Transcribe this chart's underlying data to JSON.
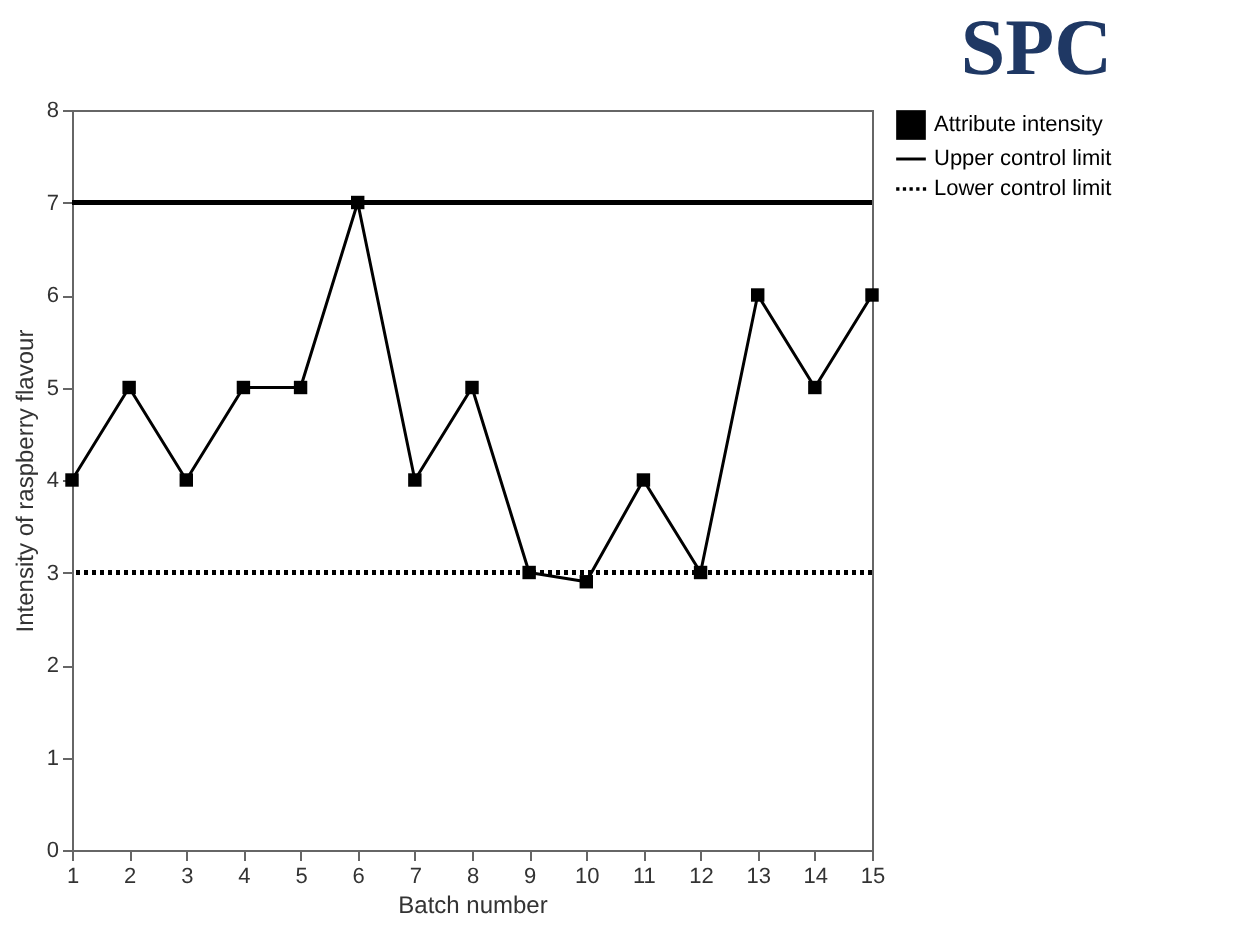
{
  "chart_data": {
    "type": "line",
    "title": "SPC",
    "xlabel": "Batch number",
    "ylabel": "Intensity of raspberry flavour",
    "x": [
      1,
      2,
      3,
      4,
      5,
      6,
      7,
      8,
      9,
      10,
      11,
      12,
      13,
      14,
      15
    ],
    "series": [
      {
        "name": "Attribute intensity",
        "color": "#000000",
        "values": [
          4,
          5,
          4,
          5,
          5,
          7,
          4,
          5,
          3,
          2.9,
          4,
          3,
          6,
          5,
          6
        ]
      }
    ],
    "xlim": [
      1,
      15
    ],
    "xticks": [
      1,
      2,
      3,
      4,
      5,
      6,
      7,
      8,
      9,
      10,
      11,
      12,
      13,
      14,
      15
    ],
    "ylim": [
      0,
      8
    ],
    "yticks": [
      0,
      1,
      2,
      3,
      4,
      5,
      6,
      7,
      8
    ],
    "ref_lines": [
      {
        "axis": "y",
        "value": 7,
        "label": "Upper control limit",
        "color": "#000000",
        "line_style": "solid"
      },
      {
        "axis": "y",
        "value": 3,
        "label": "Lower control limit",
        "color": "#000000",
        "line_style": "dotted"
      }
    ],
    "marker": "square",
    "line_style": "solid",
    "grid": false,
    "legend": "right"
  }
}
